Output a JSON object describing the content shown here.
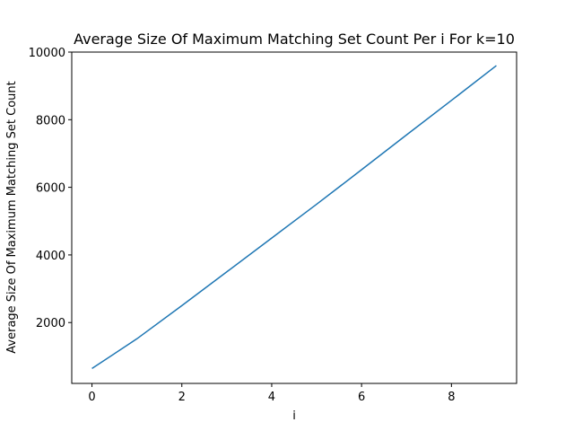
{
  "chart_data": {
    "type": "line",
    "title": "Average Size Of Maximum Matching Set Count Per i For k=10",
    "xlabel": "i",
    "ylabel": "Average Size Of Maximum Matching Set Count",
    "xlim": [
      -0.45,
      9.45
    ],
    "ylim": [
      200,
      10000
    ],
    "xticks": [
      0,
      2,
      4,
      6,
      8
    ],
    "yticks": [
      2000,
      4000,
      6000,
      8000,
      10000
    ],
    "grid": false,
    "series": [
      {
        "color": "#1f77b4",
        "x": [
          0,
          1,
          2,
          3,
          4,
          5,
          6,
          7,
          8,
          9
        ],
        "y": [
          640,
          1520,
          2500,
          3500,
          4500,
          5500,
          6520,
          7550,
          8570,
          9600
        ]
      }
    ]
  }
}
